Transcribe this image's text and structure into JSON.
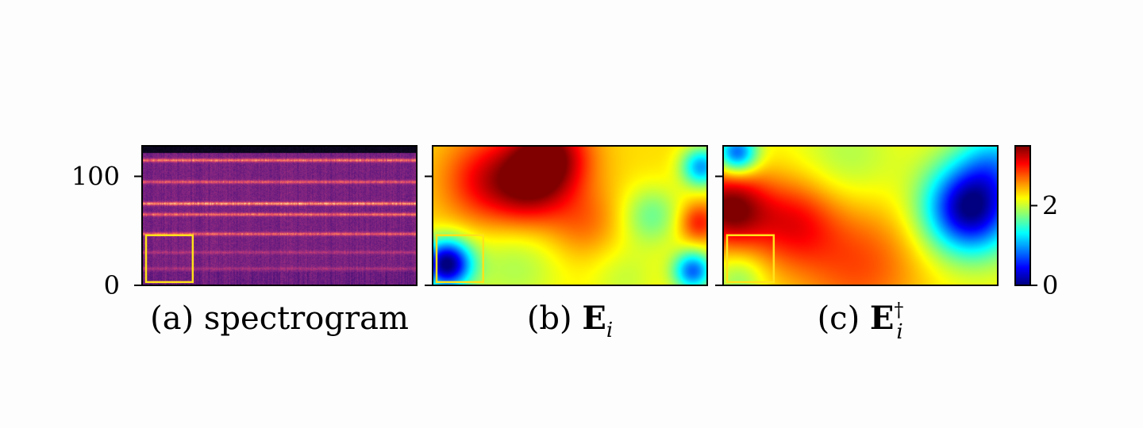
{
  "chart_data": {
    "type": "heatmap",
    "panels": [
      {
        "id": "a",
        "caption_prefix": "(a)",
        "caption_text": "spectrogram",
        "colormap": "magma",
        "y_ticks": [
          {
            "value": 0,
            "label": "0"
          },
          {
            "value": 100,
            "label": "100"
          }
        ],
        "ylim": [
          0,
          128
        ],
        "highlight_box": {
          "x_range": [
            0,
            0.17
          ],
          "y_range": [
            3,
            46
          ],
          "color": "#ffe21a"
        },
        "bright_bands": [
          {
            "y": 115,
            "intensity": 0.85
          },
          {
            "y": 95,
            "intensity": 0.7
          },
          {
            "y": 75,
            "intensity": 1.0
          },
          {
            "y": 65,
            "intensity": 0.8
          },
          {
            "y": 47,
            "intensity": 0.75
          },
          {
            "y": 30,
            "intensity": 0.35
          },
          {
            "y": 15,
            "intensity": 0.3
          }
        ]
      },
      {
        "id": "b",
        "caption_prefix": "(b)",
        "caption_symbol": "E",
        "caption_sub": "i",
        "caption_sup": "",
        "colormap": "jet",
        "highlight_box": {
          "x_range": [
            0,
            0.17
          ],
          "y_range": [
            3,
            46
          ],
          "color": "#ffe21a"
        },
        "base_value": 2.3,
        "blobs": [
          {
            "cx": 0.42,
            "cy": 0.08,
            "amp": 1.3,
            "r": 0.16
          },
          {
            "cx": 0.2,
            "cy": 0.25,
            "amp": 0.8,
            "r": 0.18
          },
          {
            "cx": 0.35,
            "cy": 0.35,
            "amp": 0.6,
            "r": 0.15
          },
          {
            "cx": 0.55,
            "cy": 0.55,
            "amp": 0.4,
            "r": 0.15
          },
          {
            "cx": 0.05,
            "cy": 0.85,
            "amp": -2.3,
            "r": 0.1
          },
          {
            "cx": 0.95,
            "cy": 0.9,
            "amp": -1.5,
            "r": 0.08
          },
          {
            "cx": 0.98,
            "cy": 0.15,
            "amp": -1.3,
            "r": 0.08
          },
          {
            "cx": 0.8,
            "cy": 0.5,
            "amp": -0.6,
            "r": 0.12
          },
          {
            "cx": 0.97,
            "cy": 0.55,
            "amp": 0.7,
            "r": 0.08
          },
          {
            "cx": 0.3,
            "cy": 0.85,
            "amp": -0.4,
            "r": 0.2
          },
          {
            "cx": 0.7,
            "cy": 0.95,
            "amp": -0.3,
            "r": 0.15
          }
        ]
      },
      {
        "id": "c",
        "caption_prefix": "(c)",
        "caption_symbol": "E",
        "caption_sub": "i",
        "caption_sup": "†",
        "colormap": "jet",
        "highlight_box": {
          "x_range": [
            0,
            0.17
          ],
          "y_range": [
            3,
            46
          ],
          "color": "#ffe21a"
        },
        "base_value": 2.2,
        "blobs": [
          {
            "cx": 0.02,
            "cy": 0.45,
            "amp": 1.3,
            "r": 0.15
          },
          {
            "cx": 0.25,
            "cy": 0.55,
            "amp": 0.8,
            "r": 0.18
          },
          {
            "cx": 0.5,
            "cy": 0.85,
            "amp": 0.6,
            "r": 0.25
          },
          {
            "cx": 0.9,
            "cy": 0.45,
            "amp": -2.2,
            "r": 0.18
          },
          {
            "cx": 1.0,
            "cy": 0.1,
            "amp": -0.8,
            "r": 0.15
          },
          {
            "cx": 0.05,
            "cy": 0.05,
            "amp": -1.5,
            "r": 0.08
          },
          {
            "cx": 0.45,
            "cy": 0.1,
            "amp": -0.3,
            "r": 0.2
          },
          {
            "cx": 0.06,
            "cy": 0.95,
            "amp": -0.4,
            "r": 0.1
          }
        ]
      }
    ],
    "colorbar": {
      "colormap": "jet",
      "range": [
        0,
        3.5
      ],
      "ticks": [
        {
          "value": 0,
          "label": "0"
        },
        {
          "value": 2,
          "label": "2"
        }
      ]
    }
  }
}
